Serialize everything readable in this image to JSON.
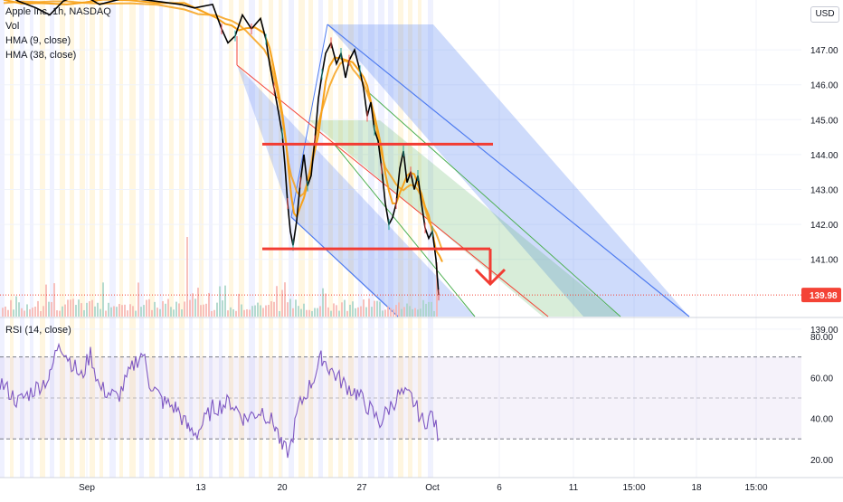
{
  "header": {
    "symbol_line": "Apple Inc, 1h, NASDAQ",
    "indicators": [
      "Vol",
      "HMA (9, close)",
      "HMA (38, close)"
    ],
    "currency": "USD"
  },
  "rsi_label": "RSI (14, close)",
  "price_tag": "139.98",
  "colors": {
    "price_line": "#000000",
    "hma9": "#f7a21b",
    "hma38": "#f7a21b",
    "channel_outer": "#4f7cf0",
    "channel_inner": "#4caf50",
    "median": "#f44336",
    "annotation": "#f23c33",
    "rsi": "#7e57c2",
    "tag": "#f44336"
  },
  "chart_data": [
    {
      "type": "line",
      "title": "Apple Inc, 1h, NASDAQ",
      "x_tick_labels": [
        "Sep",
        "13",
        "20",
        "27",
        "Oct",
        "6",
        "11",
        "15:00",
        "18",
        "15:00"
      ],
      "y_tick_labels": [
        "147.00",
        "146.00",
        "145.00",
        "144.00",
        "143.00",
        "142.00",
        "141.00",
        "139.00"
      ],
      "ylim": [
        138.5,
        148.2
      ],
      "last_price": 139.98,
      "series": [
        {
          "x": [
            "Sep 13",
            "Sep 14",
            "Sep 15",
            "Sep 16",
            "Sep 17",
            "Sep 20",
            "Sep 21",
            "Sep 22",
            "Sep 23",
            "Sep 24",
            "Sep 27",
            "Sep 28",
            "Sep 29",
            "Sep 30",
            "Oct 1"
          ],
          "values": [
            148.3,
            147.6,
            148.6,
            148.0,
            146.0,
            141.9,
            143.9,
            144.5,
            146.9,
            146.7,
            146.8,
            144.4,
            143.1,
            142.6,
            139.98
          ]
        }
      ],
      "drawings": {
        "resistance_level": 144.3,
        "support_level": 141.3,
        "channel": "descending regression channel",
        "arrow": "down"
      }
    },
    {
      "type": "line",
      "title": "RSI (14, close)",
      "y_tick_labels": [
        "80.00",
        "60.00",
        "40.00",
        "20.00"
      ],
      "ylim": [
        15,
        85
      ],
      "band": [
        30,
        70
      ],
      "mid": 50,
      "series": [
        {
          "x": [
            "Sep 1",
            "Sep 3",
            "Sep 7",
            "Sep 9",
            "Sep 13",
            "Sep 15",
            "Sep 17",
            "Sep 20",
            "Sep 22",
            "Sep 24",
            "Sep 27",
            "Sep 29",
            "Sep 30",
            "Oct 1"
          ],
          "values": [
            58,
            78,
            55,
            72,
            45,
            33,
            42,
            22,
            38,
            70,
            58,
            45,
            52,
            30
          ]
        }
      ]
    }
  ]
}
